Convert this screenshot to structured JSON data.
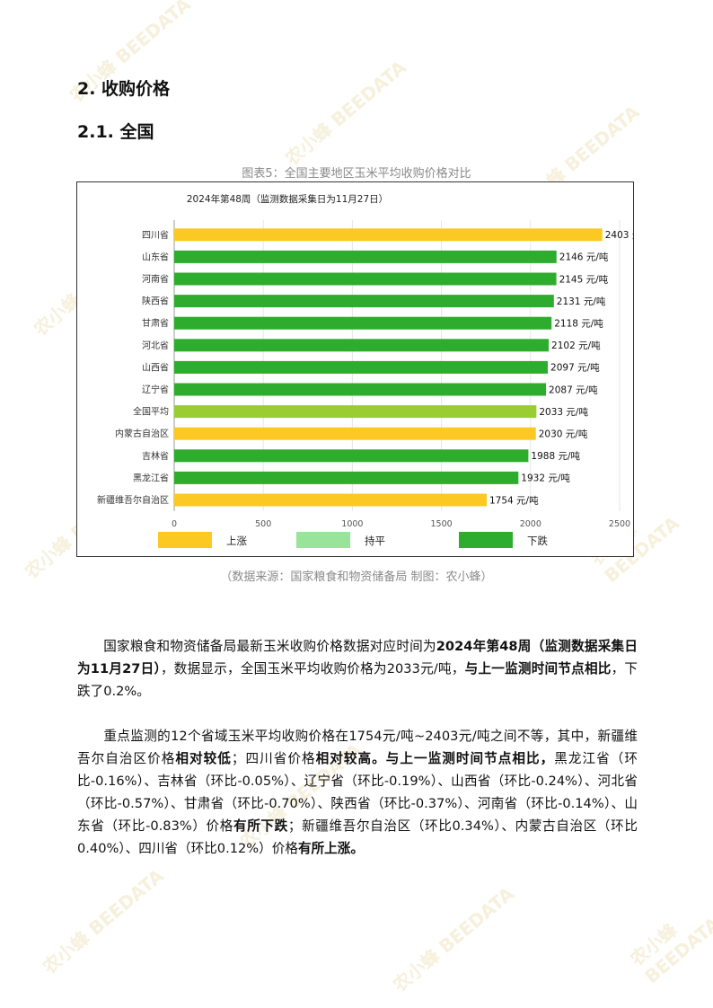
{
  "section_title": "2. 收购价格",
  "subsection_title": "2.1.  全国",
  "figure_caption": "图表5：全国主要地区玉米平均收购价格对比",
  "source_caption": "（数据来源：国家粮食和物资储备局    制图：农小蜂）",
  "watermark": "农小蜂 BEEDATA",
  "chart_data": {
    "type": "bar",
    "orientation": "horizontal",
    "title": "2024年第48周（监测数据采集日为11月27日）",
    "categories": [
      "四川省",
      "山东省",
      "河南省",
      "陕西省",
      "甘肃省",
      "河北省",
      "山西省",
      "辽宁省",
      "全国平均",
      "内蒙古自治区",
      "吉林省",
      "黑龙江省",
      "新疆维吾尔自治区"
    ],
    "values": [
      2403,
      2146,
      2145,
      2131,
      2118,
      2102,
      2097,
      2087,
      2033,
      2030,
      1988,
      1932,
      1754
    ],
    "status": [
      "上涨",
      "下跌",
      "下跌",
      "下跌",
      "下跌",
      "下跌",
      "下跌",
      "下跌",
      "下跌",
      "上涨",
      "下跌",
      "下跌",
      "上涨"
    ],
    "unit": "元/吨",
    "xlim": [
      0,
      2500
    ],
    "xticks": [
      0,
      500,
      1000,
      1500,
      2000,
      2500
    ],
    "legend": [
      {
        "name": "上涨",
        "color": "#fcc923"
      },
      {
        "name": "持平",
        "color": "#98e49a"
      },
      {
        "name": "下跌",
        "color": "#2eac2e"
      }
    ],
    "special_colors": {
      "全国平均": "#9acd32"
    },
    "legend_position": "bottom"
  },
  "paragraph1": {
    "t1": "国家粮食和物资储备局最新玉米收购价格数据对应时间为",
    "b1": "2024年第48周（监测数据采集日为11月27日）",
    "t2": "，数据显示，全国玉米平均收购价格为2033元/吨，",
    "b2": "与上一监测时间节点相比",
    "t3": "，下跌了0.2%。"
  },
  "paragraph2": {
    "t1": "重点监测的12个省域玉米平均收购价格在1754元/吨~2403元/吨之间不等，其中，新疆维吾尔自治区价格",
    "b1": "相对较低",
    "t2": "；四川省价格",
    "b2": "相对较高。与上一监测时间节点相比，",
    "t3": "黑龙江省（环比-0.16%）、吉林省（环比-0.05%）、辽宁省（环比-0.19%）、山西省（环比-0.24%）、河北省（环比-0.57%）、甘肃省（环比-0.70%）、陕西省（环比-0.37%）、河南省（环比-0.14%）、山东省（环比-0.83%）价格",
    "b3": "有所下跌",
    "t4": "；新疆维吾尔自治区（环比0.34%）、内蒙古自治区（环比0.40%）、四川省（环比0.12%）价格",
    "b4": "有所上涨。"
  }
}
